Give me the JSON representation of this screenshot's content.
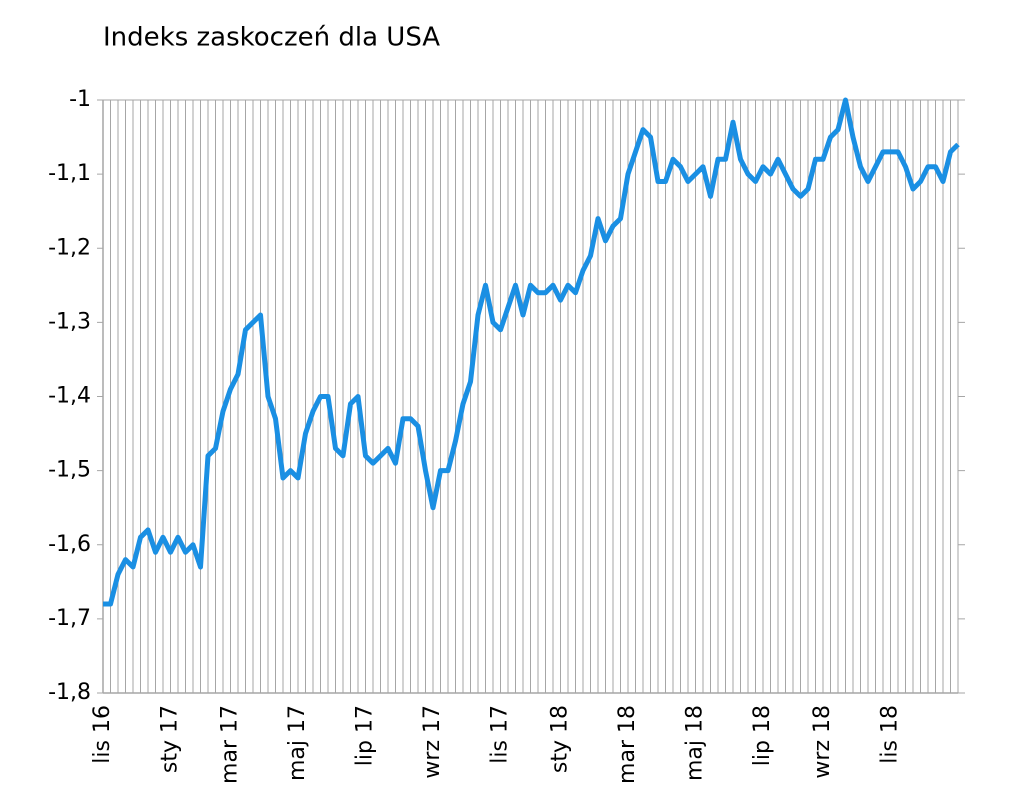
{
  "chart_data": {
    "type": "line",
    "title": "Indeks zaskoczeń dla USA",
    "categories": [
      "lis 16",
      null,
      null,
      null,
      null,
      null,
      null,
      null,
      null,
      "sty 17",
      null,
      null,
      null,
      null,
      null,
      null,
      null,
      "mar 17",
      null,
      null,
      null,
      null,
      null,
      null,
      null,
      null,
      "maj 17",
      null,
      null,
      null,
      null,
      null,
      null,
      null,
      null,
      "lip 17",
      null,
      null,
      null,
      null,
      null,
      null,
      null,
      null,
      "wrz 17",
      null,
      null,
      null,
      null,
      null,
      null,
      null,
      null,
      "lis 17",
      null,
      null,
      null,
      null,
      null,
      null,
      null,
      "sty 18",
      null,
      null,
      null,
      null,
      null,
      null,
      null,
      null,
      "mar 18",
      null,
      null,
      null,
      null,
      null,
      null,
      null,
      null,
      "maj 18",
      null,
      null,
      null,
      null,
      null,
      null,
      null,
      null,
      "lip 18",
      null,
      null,
      null,
      null,
      null,
      null,
      null,
      "wrz 18",
      null,
      null,
      null,
      null,
      null,
      null,
      null,
      null,
      "lis 18",
      null,
      null,
      null,
      null,
      null,
      null,
      null,
      null,
      null
    ],
    "series": [
      {
        "name": "Indeks zaskoczeń",
        "color": "#1a8fe3",
        "values": [
          -1.68,
          -1.68,
          -1.64,
          -1.62,
          -1.63,
          -1.59,
          -1.58,
          -1.61,
          -1.59,
          -1.61,
          -1.59,
          -1.61,
          -1.6,
          -1.63,
          -1.48,
          -1.47,
          -1.42,
          -1.39,
          -1.37,
          -1.31,
          -1.3,
          -1.29,
          -1.4,
          -1.43,
          -1.51,
          -1.5,
          -1.51,
          -1.45,
          -1.42,
          -1.4,
          -1.4,
          -1.47,
          -1.48,
          -1.41,
          -1.4,
          -1.48,
          -1.49,
          -1.48,
          -1.47,
          -1.49,
          -1.43,
          -1.43,
          -1.44,
          -1.5,
          -1.55,
          -1.5,
          -1.5,
          -1.46,
          -1.41,
          -1.38,
          -1.29,
          -1.25,
          -1.3,
          -1.31,
          -1.28,
          -1.25,
          -1.29,
          -1.25,
          -1.26,
          -1.26,
          -1.25,
          -1.27,
          -1.25,
          -1.26,
          -1.23,
          -1.21,
          -1.16,
          -1.19,
          -1.17,
          -1.16,
          -1.1,
          -1.07,
          -1.04,
          -1.05,
          -1.11,
          -1.11,
          -1.08,
          -1.09,
          -1.11,
          -1.1,
          -1.09,
          -1.13,
          -1.08,
          -1.08,
          -1.03,
          -1.08,
          -1.1,
          -1.11,
          -1.09,
          -1.1,
          -1.08,
          -1.1,
          -1.12,
          -1.13,
          -1.12,
          -1.08,
          -1.08,
          -1.05,
          -1.04,
          -1.0,
          -1.05,
          -1.09,
          -1.11,
          -1.09,
          -1.07,
          -1.07,
          -1.07,
          -1.09,
          -1.12,
          -1.11,
          -1.09,
          -1.09,
          -1.11,
          -1.07,
          -1.06
        ]
      }
    ],
    "ylim": [
      -1.8,
      -1
    ],
    "yticks": [
      {
        "value": -1.8,
        "label": "-1,8"
      },
      {
        "value": -1.7,
        "label": "-1,7"
      },
      {
        "value": -1.6,
        "label": "-1,6"
      },
      {
        "value": -1.5,
        "label": "-1,5"
      },
      {
        "value": -1.4,
        "label": "-1,4"
      },
      {
        "value": -1.3,
        "label": "-1,3"
      },
      {
        "value": -1.2,
        "label": "-1,2"
      },
      {
        "value": -1.1,
        "label": "-1,1"
      },
      -1
    ],
    "grid": true
  }
}
